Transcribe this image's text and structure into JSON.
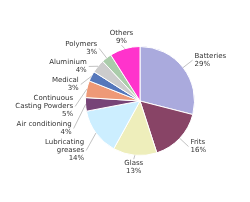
{
  "chart_data": {
    "type": "pie",
    "categories": [
      "Batteries",
      "Frits",
      "Glass",
      "Lubricating\ngreases",
      "Air conditioning",
      "Continuous\nCasting Powders",
      "Medical",
      "Aluminium",
      "Polymers",
      "Others"
    ],
    "values": [
      29,
      16,
      13,
      14,
      4,
      5,
      3,
      4,
      3,
      9
    ],
    "value_labels": [
      "29%",
      "16%",
      "13%",
      "14%",
      "4%",
      "5%",
      "3%",
      "4%",
      "3%",
      "9%"
    ],
    "data_labels": true,
    "colors": [
      "#aaaadd",
      "#884466",
      "#eeeebb",
      "#cceeff",
      "#774477",
      "#ee9977",
      "#5577bb",
      "#cccccc",
      "#aaccaa",
      "#ff33cc"
    ]
  }
}
